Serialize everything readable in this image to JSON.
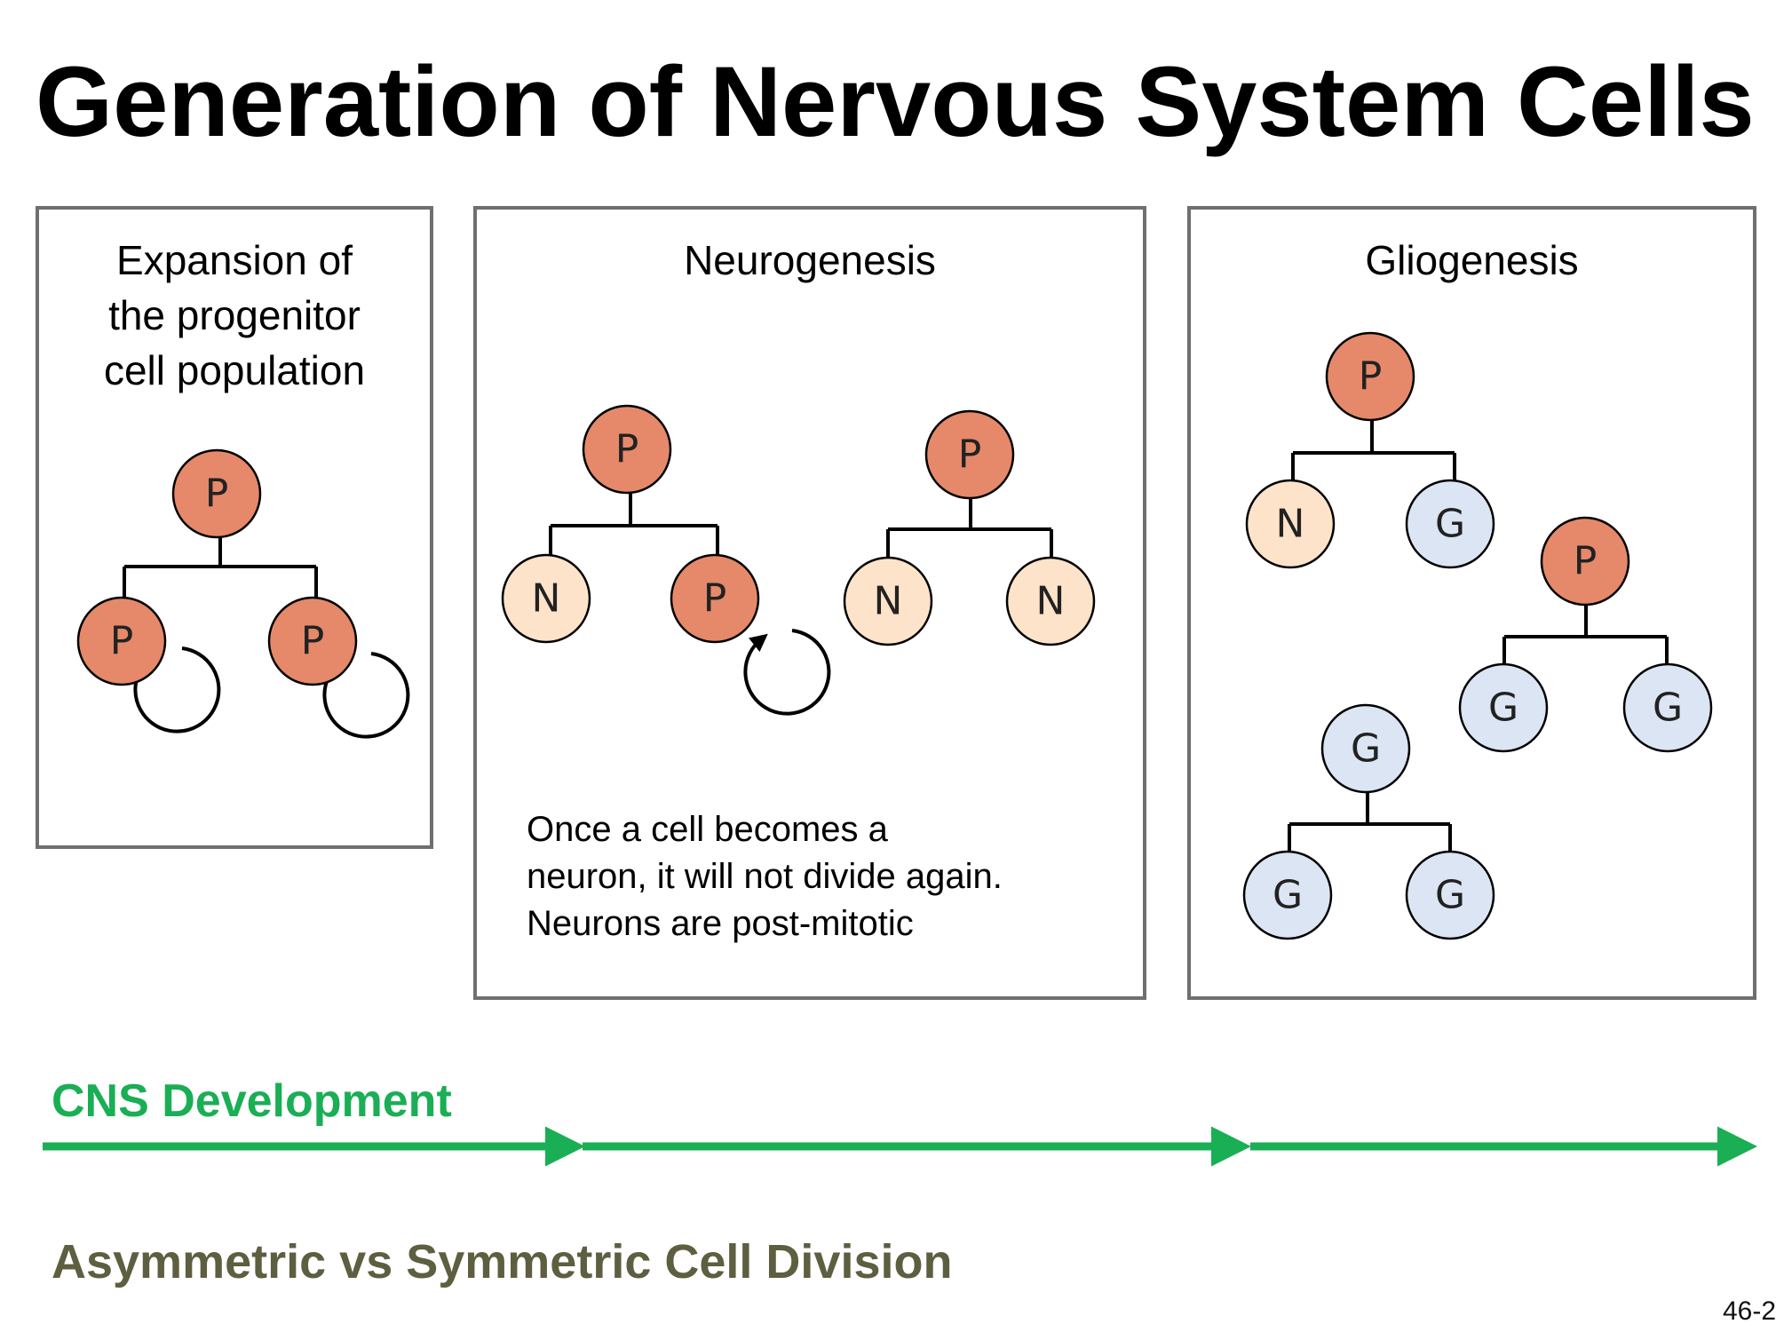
{
  "slide": {
    "title": "Generation of Nervous System Cells",
    "number": "46-2"
  },
  "panels": {
    "expansion": {
      "heading": "Expansion of\nthe progenitor\ncell population"
    },
    "neurogenesis": {
      "heading": "Neurogenesis",
      "note": "Once a cell becomes a\nneuron, it will not divide again.\nNeurons are post-mitotic"
    },
    "gliogenesis": {
      "heading": "Gliogenesis"
    }
  },
  "cells": {
    "progenitor": "P",
    "neuron": "N",
    "glia": "G"
  },
  "colors": {
    "progenitor_fill": "#e5896a",
    "neuron_fill": "#fde3c9",
    "glia_fill": "#dbe5f3",
    "timeline": "#1aae55",
    "footer_text": "#5e5e40",
    "panel_border": "#6f6f6f"
  },
  "timeline": {
    "label": "CNS Development",
    "segments": 3
  },
  "footer": {
    "title": "Asymmetric vs Symmetric Cell Division"
  }
}
